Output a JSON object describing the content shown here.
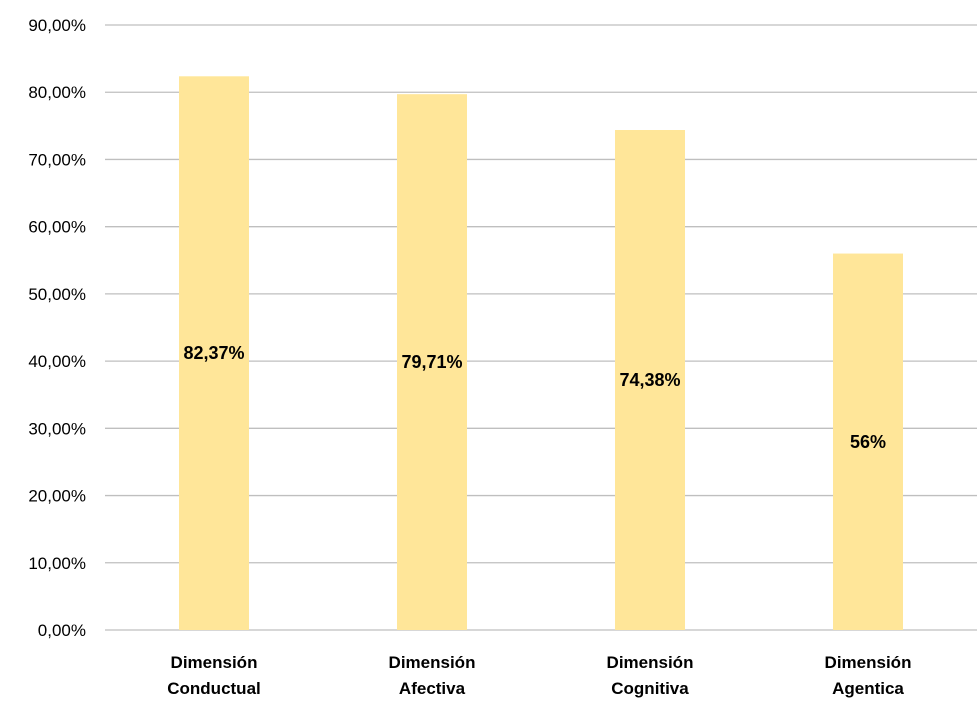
{
  "chart_data": {
    "type": "bar",
    "title": "",
    "xlabel": "",
    "ylabel": "",
    "categories": [
      [
        "Dimensión",
        "Conductual"
      ],
      [
        "Dimensión",
        "Afectiva"
      ],
      [
        "Dimensión",
        "Cognitiva"
      ],
      [
        "Dimensión",
        "Agentica"
      ]
    ],
    "values": [
      82.37,
      79.71,
      74.38,
      56
    ],
    "data_labels": [
      "82,37%",
      "79,71%",
      "74,38%",
      "56%"
    ],
    "ylim": [
      0,
      90
    ],
    "yticks": [
      0,
      10,
      20,
      30,
      40,
      50,
      60,
      70,
      80,
      90
    ],
    "ytick_labels": [
      "0,00%",
      "10,00%",
      "20,00%",
      "30,00%",
      "40,00%",
      "50,00%",
      "60,00%",
      "70,00%",
      "80,00%",
      "90,00%"
    ],
    "grid": true,
    "legend": "none",
    "colors": {
      "bar": "#FFE699",
      "grid": "#BFBFBF",
      "text": "#000000"
    }
  }
}
